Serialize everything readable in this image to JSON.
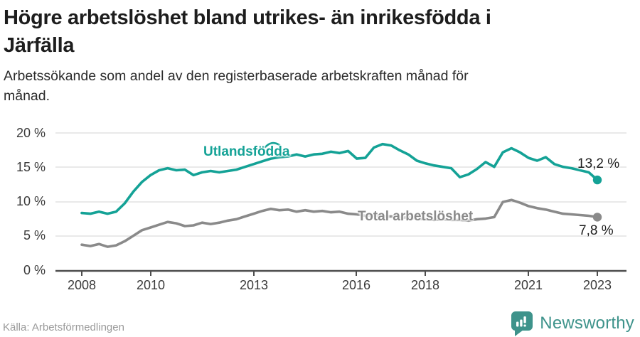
{
  "header": {
    "title_line1": "Högre arbetslöshet bland utrikes- än inrikesfödda i",
    "title_line2": "Järfälla",
    "subtitle_line1": "Arbetssökande som andel av den registerbaserade arbetskraften månad för",
    "subtitle_line2": "månad."
  },
  "colors": {
    "accent_teal": "#14a296",
    "line_gray": "#8a8a8a",
    "value_label_dark": "#1d1d1d",
    "grid": "#dcdcdc",
    "axis": "#4d4d4d",
    "brand_teal": "#3e938b",
    "source_gray": "#9a9a9a"
  },
  "chart_data": {
    "type": "line",
    "x_start_year": 2008,
    "x_step_years": 0.25,
    "x_tick_years": [
      2008,
      2010,
      2013,
      2016,
      2018,
      2021,
      2023
    ],
    "x_tick_labels": [
      "2008",
      "2010",
      "2013",
      "2016",
      "2018",
      "2021",
      "2023"
    ],
    "y_ticks": [
      0,
      5,
      10,
      15,
      20
    ],
    "y_tick_labels": [
      "0 %",
      "5 %",
      "10 %",
      "15 %",
      "20 %"
    ],
    "ylim": [
      0,
      21
    ],
    "grid": true,
    "legend_position": "inline-labels",
    "series": [
      {
        "name": "Utlandsfödda",
        "color": "#14a296",
        "end_label": "13,2 %",
        "end_value": 13.2,
        "values": [
          8.4,
          8.3,
          8.6,
          8.3,
          8.6,
          9.8,
          11.5,
          12.9,
          13.9,
          14.6,
          14.9,
          14.6,
          14.7,
          13.9,
          14.3,
          14.5,
          14.3,
          14.5,
          14.7,
          15.1,
          15.5,
          15.9,
          16.3,
          16.5,
          16.6,
          16.9,
          16.6,
          16.9,
          17.0,
          17.3,
          17.1,
          17.4,
          16.3,
          16.4,
          17.9,
          18.4,
          18.2,
          17.5,
          16.9,
          16.0,
          15.6,
          15.3,
          15.1,
          14.9,
          13.6,
          14.0,
          14.8,
          15.8,
          15.1,
          17.2,
          17.8,
          17.2,
          16.4,
          16.0,
          16.5,
          15.5,
          15.1,
          14.9,
          14.6,
          14.3,
          13.2
        ]
      },
      {
        "name": "Total arbetslöshet",
        "color": "#8a8a8a",
        "end_label": "7,8 %",
        "end_value": 7.8,
        "values": [
          3.8,
          3.6,
          3.9,
          3.5,
          3.7,
          4.3,
          5.1,
          5.9,
          6.3,
          6.7,
          7.1,
          6.9,
          6.5,
          6.6,
          7.0,
          6.8,
          7.0,
          7.3,
          7.5,
          7.9,
          8.3,
          8.7,
          9.0,
          8.8,
          8.9,
          8.6,
          8.8,
          8.6,
          8.7,
          8.5,
          8.6,
          8.3,
          8.2,
          8.0,
          8.1,
          7.9,
          7.9,
          7.7,
          7.8,
          7.6,
          7.5,
          7.4,
          7.5,
          7.4,
          7.4,
          7.3,
          7.5,
          7.6,
          7.8,
          10.0,
          10.3,
          9.9,
          9.4,
          9.1,
          8.9,
          8.6,
          8.3,
          8.2,
          8.1,
          8.0,
          7.8
        ]
      }
    ]
  },
  "footer": {
    "source": "Källa: Arbetsförmedlingen",
    "brand": "Newsworthy"
  }
}
